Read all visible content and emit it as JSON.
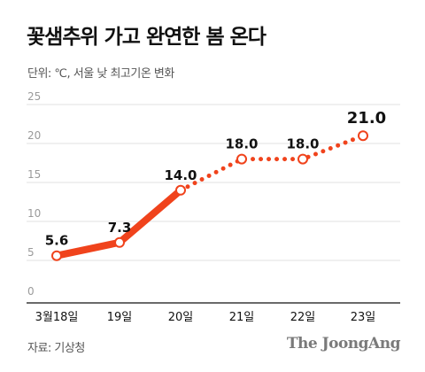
{
  "header": {
    "title": "꽃샘추위 가고 완연한 봄 온다",
    "subtitle": "단위: ℃, 서울 낮 최고기온 변화"
  },
  "footer": {
    "source": "자료: 기상청",
    "brand": "The JoongAng"
  },
  "colors": {
    "accent": "#f0431c",
    "grid": "#e2e2e2",
    "baseline": "#111111"
  },
  "chart_data": {
    "type": "line",
    "title": "꽃샘추위 가고 완연한 봄 온다",
    "subtitle": "단위: ℃, 서울 낮 최고기온 변화",
    "xlabel": "",
    "ylabel": "",
    "categories": [
      "3월18일",
      "19일",
      "20일",
      "21일",
      "22일",
      "23일"
    ],
    "series": [
      {
        "values": [
          5.6,
          7.3,
          14.0,
          18.0,
          18.0,
          21.0
        ],
        "labels": [
          "5.6",
          "7.3",
          "14.0",
          "18.0",
          "18.0",
          "21.0"
        ],
        "observed_until_index": 2,
        "forecast_style": "dotted"
      }
    ],
    "ylim": [
      0,
      25
    ],
    "yticks": [
      0,
      5,
      10,
      15,
      20,
      25
    ],
    "grid": true,
    "legend": "none"
  }
}
